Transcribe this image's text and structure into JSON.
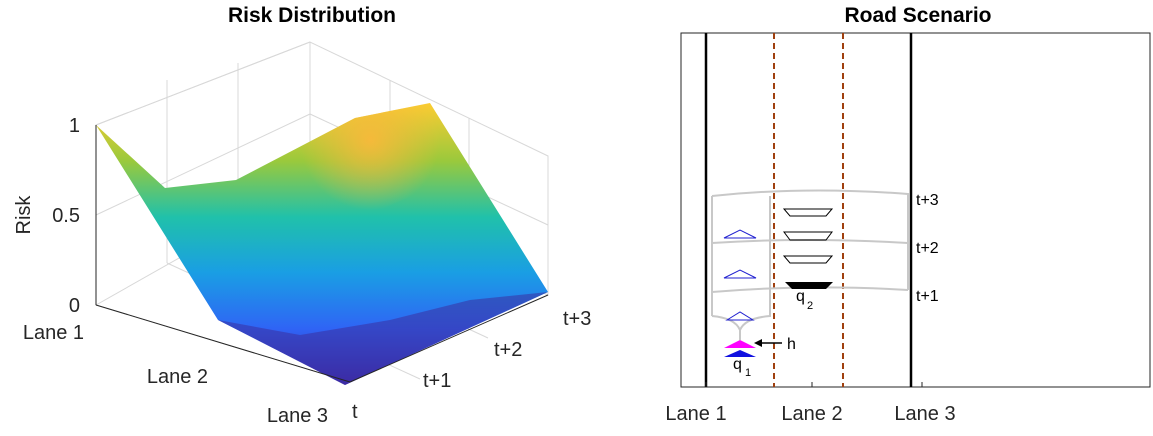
{
  "chart_data": [
    {
      "type": "surface",
      "title": "Risk Distribution",
      "zlabel": "Risk",
      "x_ticks": [
        "Lane 1",
        "Lane 2",
        "Lane 3"
      ],
      "y_ticks": [
        "t",
        "t+1",
        "t+2",
        "t+3"
      ],
      "z_ticks": [
        "0",
        "0.5",
        "1"
      ],
      "zlim": [
        0,
        1
      ],
      "colormap": "parula",
      "grid": true,
      "z_values": [
        [
          1.0,
          0.0,
          0.0,
          0.0,
          0.0
        ],
        [
          0.62,
          0.85,
          1.0,
          0.0,
          0.0
        ],
        [
          0.0,
          0.0,
          0.0,
          0.0,
          0.0
        ]
      ]
    },
    {
      "type": "diagram",
      "title": "Road Scenario",
      "x_ticks": [
        "Lane 1",
        "Lane 2",
        "Lane 3"
      ],
      "time_labels": [
        "t+3",
        "t+2",
        "t+1"
      ],
      "annotations": {
        "q1": "q",
        "q1_sub": "1",
        "q2": "q",
        "q2_sub": "2",
        "h": "h"
      }
    }
  ]
}
